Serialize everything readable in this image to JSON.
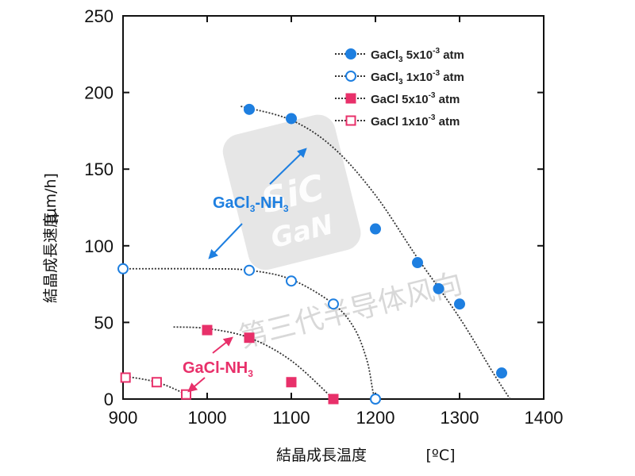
{
  "chart_data": {
    "type": "scatter",
    "title": "",
    "xlabel": "結晶成長温度",
    "xunit": "[ºC]",
    "ylabel": "結晶成長速度",
    "yunit": "[μm/h]",
    "xlim": [
      900,
      1400
    ],
    "ylim": [
      0,
      250
    ],
    "xticks": [
      900,
      1000,
      1100,
      1200,
      1300,
      1400
    ],
    "yticks": [
      0,
      50,
      100,
      150,
      200,
      250
    ],
    "legend_position": "top-right",
    "series": [
      {
        "name": "GaCl3 5x10-3 atm",
        "label_main": "GaCl",
        "label_sub": "3",
        "label_coef": " 5x10",
        "label_exp": "-3",
        "label_unit": " atm",
        "marker": "circle",
        "filled": true,
        "color": "#1e7fe0",
        "points": [
          [
            1050,
            189
          ],
          [
            1100,
            183
          ],
          [
            1200,
            111
          ],
          [
            1250,
            89
          ],
          [
            1275,
            72
          ],
          [
            1300,
            62
          ],
          [
            1350,
            17
          ]
        ],
        "fit": [
          [
            1040,
            191
          ],
          [
            1100,
            182
          ],
          [
            1150,
            164
          ],
          [
            1200,
            133
          ],
          [
            1250,
            92
          ],
          [
            1300,
            53
          ],
          [
            1340,
            17
          ],
          [
            1360,
            0
          ]
        ]
      },
      {
        "name": "GaCl3 1x10-3 atm",
        "label_main": "GaCl",
        "label_sub": "3",
        "label_coef": " 1x10",
        "label_exp": "-3",
        "label_unit": " atm",
        "marker": "circle",
        "filled": false,
        "color": "#1e7fe0",
        "points": [
          [
            900,
            85
          ],
          [
            1050,
            84
          ],
          [
            1100,
            77
          ],
          [
            1150,
            62
          ],
          [
            1200,
            0
          ]
        ],
        "fit": [
          [
            900,
            85
          ],
          [
            1000,
            85
          ],
          [
            1050,
            84
          ],
          [
            1100,
            78
          ],
          [
            1150,
            62
          ],
          [
            1175,
            46
          ],
          [
            1190,
            25
          ],
          [
            1197,
            5
          ],
          [
            1200,
            0
          ]
        ]
      },
      {
        "name": "GaCl 5x10-3 atm",
        "label_main": "GaCl",
        "label_sub": "",
        "label_coef": "  5x10",
        "label_exp": "-3",
        "label_unit": " atm",
        "marker": "square",
        "filled": true,
        "color": "#e8306a",
        "points": [
          [
            1000,
            45
          ],
          [
            1050,
            40
          ],
          [
            1100,
            11
          ],
          [
            1150,
            0
          ]
        ],
        "fit": [
          [
            960,
            47
          ],
          [
            1000,
            46
          ],
          [
            1050,
            40
          ],
          [
            1100,
            25
          ],
          [
            1150,
            0
          ]
        ]
      },
      {
        "name": "GaCl 1x10-3 atm",
        "label_main": "GaCl",
        "label_sub": "",
        "label_coef": "  1x10",
        "label_exp": "-3",
        "label_unit": " atm",
        "marker": "square",
        "filled": false,
        "color": "#e8306a",
        "points": [
          [
            903,
            14
          ],
          [
            940,
            11
          ],
          [
            975,
            3
          ]
        ],
        "fit": [
          [
            900,
            15
          ],
          [
            940,
            11
          ],
          [
            975,
            3
          ],
          [
            980,
            0
          ]
        ]
      }
    ],
    "annotations": [
      {
        "text_main": "GaCl",
        "text_sub": "3",
        "text_tail": "-NH",
        "text_sub2": "3",
        "color": "#1e7fe0"
      },
      {
        "text_main": "GaCl-NH",
        "text_sub": "3",
        "text_tail": "",
        "text_sub2": "",
        "color": "#e8306a"
      }
    ]
  },
  "watermark": {
    "logo_top": "SiC",
    "logo_bottom": "GaN",
    "text": "第三代半导体风向"
  }
}
